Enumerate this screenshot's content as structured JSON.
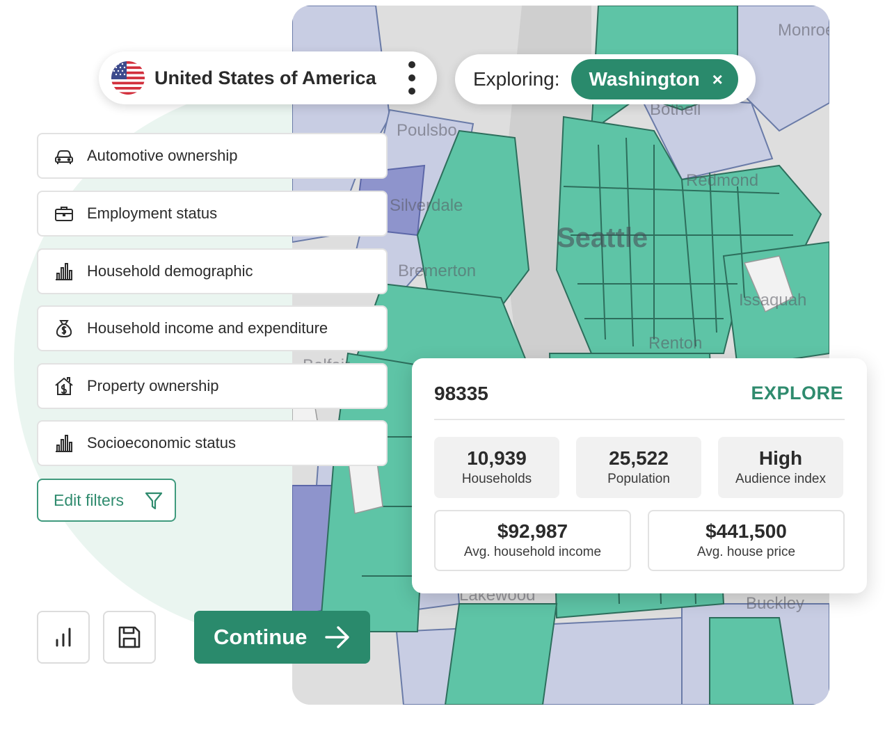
{
  "colors": {
    "accent": "#2a8a6c",
    "map_green": "#5ec4a6",
    "map_lavender": "#c8cde3",
    "map_purple": "#8e94cc"
  },
  "country_pill": {
    "name": "United States of America",
    "flag_icon": "us-flag-icon",
    "menu_icon": "kebab-menu-icon"
  },
  "explore_pill": {
    "label": "Exploring:",
    "region": "Washington",
    "close_glyph": "×"
  },
  "filters": [
    {
      "label": "Automotive ownership",
      "icon": "car-icon"
    },
    {
      "label": "Employment status",
      "icon": "briefcase-icon"
    },
    {
      "label": "Household demographic",
      "icon": "bar-chart-icon"
    },
    {
      "label": "Household income and expenditure",
      "icon": "money-bag-icon"
    },
    {
      "label": "Property ownership",
      "icon": "house-icon"
    },
    {
      "label": "Socioeconomic status",
      "icon": "bar-chart-icon"
    }
  ],
  "edit_filters": {
    "label": "Edit filters",
    "icon": "filter-icon"
  },
  "actions": {
    "chart_icon": "chart-icon",
    "save_icon": "save-icon",
    "continue_label": "Continue"
  },
  "map": {
    "places": [
      "Monroe",
      "Bothell",
      "Poulsbo",
      "Redmond",
      "Silverdale",
      "Seattle",
      "Bremerton",
      "Issaquah",
      "Renton",
      "Belfair",
      "Lakewood",
      "Buckley"
    ]
  },
  "info_card": {
    "zip": "98335",
    "explore_label": "EXPLORE",
    "stats": [
      {
        "value": "10,939",
        "label": "Households"
      },
      {
        "value": "25,522",
        "label": "Population"
      },
      {
        "value": "High",
        "label": "Audience index"
      }
    ],
    "wide_stats": [
      {
        "value": "$92,987",
        "label": "Avg. household income"
      },
      {
        "value": "$441,500",
        "label": "Avg. house price"
      }
    ]
  }
}
